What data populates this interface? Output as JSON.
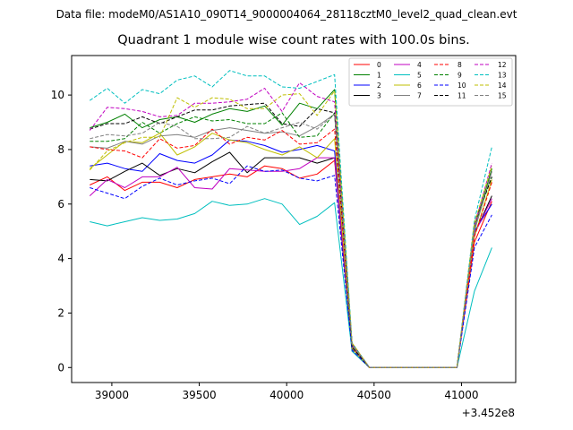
{
  "figure": {
    "suptitle": "Data file: modeM0/AS1A10_090T14_9000004064_28118cztM0_level2_quad_clean.evt",
    "title": "Quadrant 1 module wise count rates with 100.0s bins.",
    "offset_label": "+3.452e8"
  },
  "chart_data": {
    "type": "line",
    "title": "Quadrant 1 module wise count rates with 100.0s bins.",
    "xlabel": "",
    "ylabel": "",
    "x_offset": 345200000,
    "xlim": [
      38770,
      41310
    ],
    "ylim": [
      -0.55,
      11.45
    ],
    "xticks": [
      39000,
      39500,
      40000,
      40500,
      41000
    ],
    "yticks": [
      0,
      2,
      4,
      6,
      8,
      10
    ],
    "legend": {
      "placement": "top-right",
      "ncol": 4
    },
    "x": [
      38874,
      38974,
      39074,
      39174,
      39274,
      39374,
      39474,
      39574,
      39674,
      39774,
      39874,
      39974,
      40074,
      40174,
      40274,
      40374,
      40474,
      40574,
      40674,
      40774,
      40874,
      40974,
      41074,
      41174
    ],
    "series": [
      {
        "name": "0",
        "color": "#ff0000",
        "dash": "solid",
        "values": [
          6.7,
          7.0,
          6.5,
          6.8,
          6.8,
          6.6,
          6.9,
          7.0,
          7.1,
          7.0,
          7.4,
          7.3,
          6.95,
          7.1,
          7.6,
          0.75,
          0.0,
          0.0,
          0.0,
          0.0,
          0.0,
          0.0,
          4.6,
          6.1
        ]
      },
      {
        "name": "1",
        "color": "#008000",
        "dash": "solid",
        "values": [
          8.8,
          9.0,
          9.3,
          8.8,
          9.1,
          9.2,
          9.0,
          9.3,
          9.5,
          9.4,
          9.6,
          8.9,
          9.7,
          9.5,
          10.2,
          0.85,
          0.0,
          0.0,
          0.0,
          0.0,
          0.0,
          0.0,
          5.1,
          7.3
        ]
      },
      {
        "name": "2",
        "color": "#0000ff",
        "dash": "solid",
        "values": [
          7.4,
          7.5,
          7.3,
          7.2,
          7.85,
          7.6,
          7.5,
          7.8,
          8.35,
          8.3,
          8.15,
          7.9,
          8.0,
          8.15,
          7.95,
          0.7,
          0.0,
          0.0,
          0.0,
          0.0,
          0.0,
          0.0,
          5.0,
          6.0
        ]
      },
      {
        "name": "3",
        "color": "#000000",
        "dash": "solid",
        "values": [
          6.9,
          6.85,
          7.2,
          7.5,
          7.05,
          7.3,
          7.15,
          7.55,
          7.9,
          7.15,
          7.7,
          7.7,
          7.7,
          7.5,
          7.7,
          0.6,
          0.0,
          0.0,
          0.0,
          0.0,
          0.0,
          0.0,
          4.9,
          6.3
        ]
      },
      {
        "name": "4",
        "color": "#c000c0",
        "dash": "solid",
        "values": [
          6.3,
          6.9,
          6.6,
          7.0,
          7.0,
          7.35,
          6.6,
          6.55,
          7.3,
          7.25,
          7.2,
          7.2,
          7.3,
          7.7,
          7.7,
          0.8,
          0.0,
          0.0,
          0.0,
          0.0,
          0.0,
          0.0,
          4.9,
          6.2
        ]
      },
      {
        "name": "5",
        "color": "#00bfbf",
        "dash": "solid",
        "values": [
          5.35,
          5.2,
          5.35,
          5.5,
          5.4,
          5.45,
          5.65,
          6.1,
          5.95,
          6.0,
          6.2,
          6.0,
          5.25,
          5.55,
          6.05,
          0.6,
          0.0,
          0.0,
          0.0,
          0.0,
          0.0,
          0.0,
          2.8,
          4.4
        ]
      },
      {
        "name": "6",
        "color": "#bfbf00",
        "dash": "solid",
        "values": [
          7.3,
          7.8,
          8.3,
          8.25,
          8.6,
          7.8,
          8.1,
          8.6,
          8.35,
          8.25,
          8.0,
          7.8,
          8.1,
          7.7,
          8.4,
          0.7,
          0.0,
          0.0,
          0.0,
          0.0,
          0.0,
          0.0,
          4.8,
          6.9
        ]
      },
      {
        "name": "7",
        "color": "#808080",
        "dash": "solid",
        "values": [
          8.1,
          8.05,
          8.3,
          8.2,
          8.5,
          8.55,
          8.45,
          8.7,
          8.8,
          8.7,
          8.6,
          8.65,
          8.5,
          8.85,
          9.3,
          0.8,
          0.0,
          0.0,
          0.0,
          0.0,
          0.0,
          0.0,
          5.0,
          7.2
        ]
      },
      {
        "name": "8",
        "color": "#ff0000",
        "dash": "dashed",
        "values": [
          8.1,
          8.0,
          7.95,
          7.7,
          8.4,
          8.05,
          8.15,
          8.75,
          8.2,
          8.45,
          8.35,
          8.7,
          8.2,
          8.25,
          8.75,
          0.9,
          0.0,
          0.0,
          0.0,
          0.0,
          0.0,
          0.0,
          4.8,
          6.8
        ]
      },
      {
        "name": "9",
        "color": "#008000",
        "dash": "dashed",
        "values": [
          8.3,
          8.3,
          8.4,
          9.0,
          8.6,
          8.95,
          9.2,
          9.05,
          9.1,
          8.95,
          8.95,
          9.35,
          8.45,
          8.5,
          9.35,
          0.9,
          0.0,
          0.0,
          0.0,
          0.0,
          0.0,
          0.0,
          5.2,
          7.0
        ]
      },
      {
        "name": "10",
        "color": "#0000ff",
        "dash": "dashed",
        "values": [
          6.6,
          6.4,
          6.2,
          6.65,
          6.95,
          6.7,
          6.85,
          6.95,
          6.75,
          7.4,
          7.2,
          7.25,
          6.95,
          6.85,
          7.05,
          0.65,
          0.0,
          0.0,
          0.0,
          0.0,
          0.0,
          0.0,
          4.4,
          5.6
        ]
      },
      {
        "name": "11",
        "color": "#000000",
        "dash": "dashed",
        "values": [
          8.75,
          8.95,
          8.95,
          9.2,
          8.95,
          9.2,
          9.45,
          9.45,
          9.6,
          9.65,
          9.7,
          8.95,
          8.85,
          9.5,
          9.35,
          0.75,
          0.0,
          0.0,
          0.0,
          0.0,
          0.0,
          0.0,
          5.3,
          7.0
        ]
      },
      {
        "name": "12",
        "color": "#c000c0",
        "dash": "dashed",
        "values": [
          8.7,
          9.55,
          9.5,
          9.4,
          9.2,
          9.25,
          9.7,
          9.7,
          9.75,
          9.85,
          10.25,
          9.4,
          10.45,
          9.95,
          9.75,
          0.85,
          0.0,
          0.0,
          0.0,
          0.0,
          0.0,
          0.0,
          5.2,
          7.5
        ]
      },
      {
        "name": "13",
        "color": "#00bfbf",
        "dash": "dashed",
        "values": [
          9.8,
          10.25,
          9.7,
          10.2,
          10.05,
          10.55,
          10.7,
          10.3,
          10.9,
          10.7,
          10.7,
          10.3,
          10.25,
          10.5,
          10.75,
          0.9,
          0.0,
          0.0,
          0.0,
          0.0,
          0.0,
          0.0,
          5.4,
          8.1
        ]
      },
      {
        "name": "14",
        "color": "#bfbf00",
        "dash": "dashed",
        "values": [
          7.25,
          7.95,
          8.25,
          8.45,
          8.45,
          9.9,
          9.55,
          9.9,
          9.85,
          9.5,
          9.5,
          10.0,
          10.05,
          9.25,
          10.15,
          0.9,
          0.0,
          0.0,
          0.0,
          0.0,
          0.0,
          0.0,
          5.3,
          7.4
        ]
      },
      {
        "name": "15",
        "color": "#808080",
        "dash": "dashed",
        "values": [
          8.4,
          8.55,
          8.5,
          8.6,
          9.0,
          8.85,
          8.4,
          8.4,
          8.45,
          8.85,
          8.6,
          8.8,
          9.0,
          8.75,
          9.3,
          0.85,
          0.0,
          0.0,
          0.0,
          0.0,
          0.0,
          0.0,
          5.1,
          7.2
        ]
      }
    ]
  }
}
